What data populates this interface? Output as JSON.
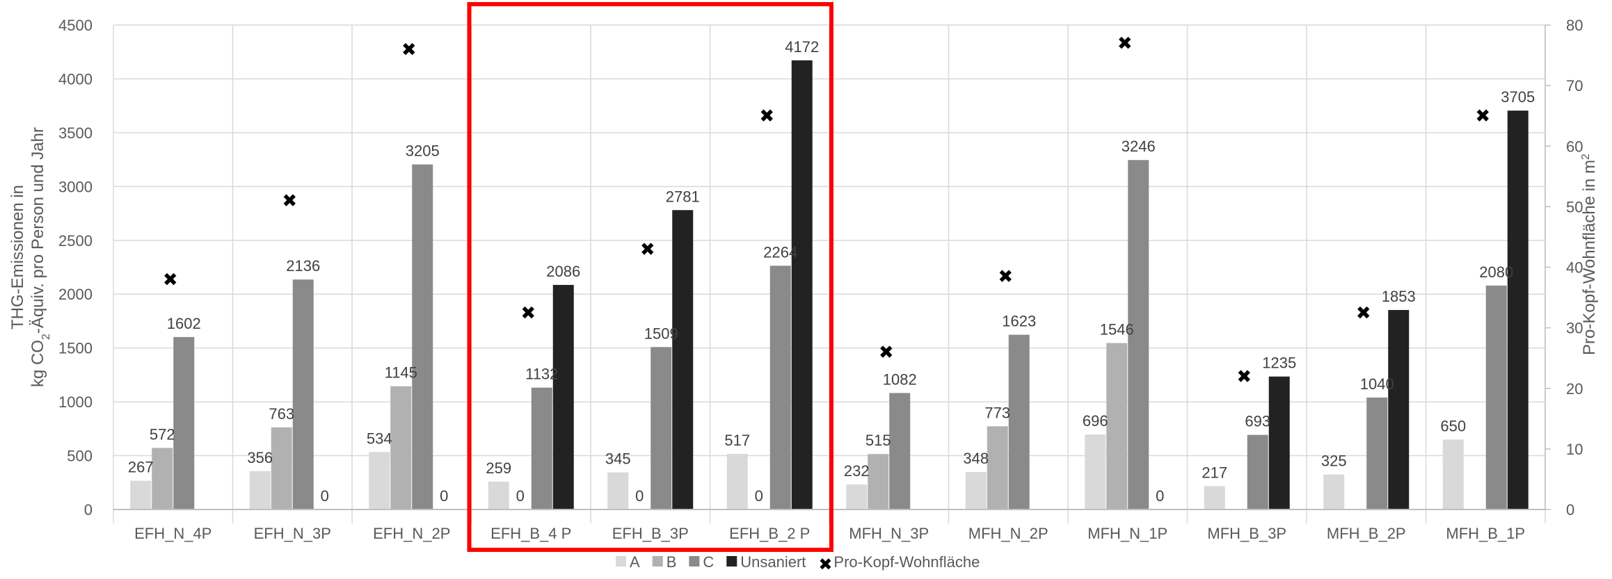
{
  "chart_data": {
    "type": "bar",
    "categories": [
      "EFH_N_4P",
      "EFH_N_3P",
      "EFH_N_2P",
      "EFH_B_4 P",
      "EFH_B_3P",
      "EFH_B_2 P",
      "MFH_N_3P",
      "MFH_N_2P",
      "MFH_N_1P",
      "MFH_B_3P",
      "MFH_B_2P",
      "MFH_B_1P"
    ],
    "series": [
      {
        "name": "A",
        "color": "#d9d9d9",
        "values": [
          267,
          356,
          534,
          259,
          345,
          517,
          232,
          348,
          696,
          217,
          325,
          650
        ]
      },
      {
        "name": "B",
        "color": "#b1b1b1",
        "values": [
          572,
          763,
          1145,
          null,
          null,
          null,
          515,
          773,
          1546,
          null,
          null,
          null
        ]
      },
      {
        "name": "C",
        "color": "#8a8a8a",
        "values": [
          1602,
          2136,
          3205,
          1132,
          1509,
          2264,
          1082,
          1623,
          3246,
          693,
          1040,
          2080
        ]
      },
      {
        "name": "Unsaniert",
        "color": "#222222",
        "values": [
          null,
          null,
          null,
          2086,
          2781,
          4172,
          null,
          null,
          null,
          1235,
          1853,
          3705
        ]
      }
    ],
    "bar_labels": [
      [
        "267",
        "356",
        "534",
        "259",
        "345",
        "517",
        "232",
        "348",
        "696",
        "217",
        "325",
        "650"
      ],
      [
        "572",
        "763",
        "1145",
        "0",
        "0",
        "0",
        "515",
        "773",
        "1546",
        "",
        "",
        ""
      ],
      [
        "1602",
        "2136",
        "3205",
        "1132",
        "1509",
        "2264",
        "1082",
        "1623",
        "3246",
        "693",
        "1040",
        "2080"
      ],
      [
        "",
        "0",
        "0",
        "2086",
        "2781",
        "4172",
        "",
        "",
        "0",
        "1235",
        "1853",
        "3705"
      ]
    ],
    "secondary_series": {
      "name": "Pro-Kopf-Wohnfläche",
      "type": "scatter",
      "marker": "✖",
      "values": [
        38,
        51,
        76,
        32.5,
        43,
        65,
        26,
        38.5,
        77,
        22,
        32.5,
        65
      ]
    },
    "ylabel_line1": "THG-Emissionen in",
    "ylabel_line2_pre": "kg CO",
    "ylabel_line2_sub": "2",
    "ylabel_line2_post": "-Äquiv. pro Person und Jahr",
    "y2label": "Pro-Kopf-Wohnfläche in m",
    "y2label_sup": "2",
    "ylim": [
      0,
      4500
    ],
    "yticks": [
      "0",
      "500",
      "1000",
      "1500",
      "2000",
      "2500",
      "3000",
      "3500",
      "4000",
      "4500"
    ],
    "y2lim": [
      0,
      80
    ],
    "y2ticks": [
      "0",
      "10",
      "20",
      "30",
      "40",
      "50",
      "60",
      "70",
      "80"
    ],
    "grid": true,
    "legend_position": "bottom",
    "highlight": {
      "from_category": 3,
      "to_category": 5,
      "color": "#ff0000"
    }
  }
}
